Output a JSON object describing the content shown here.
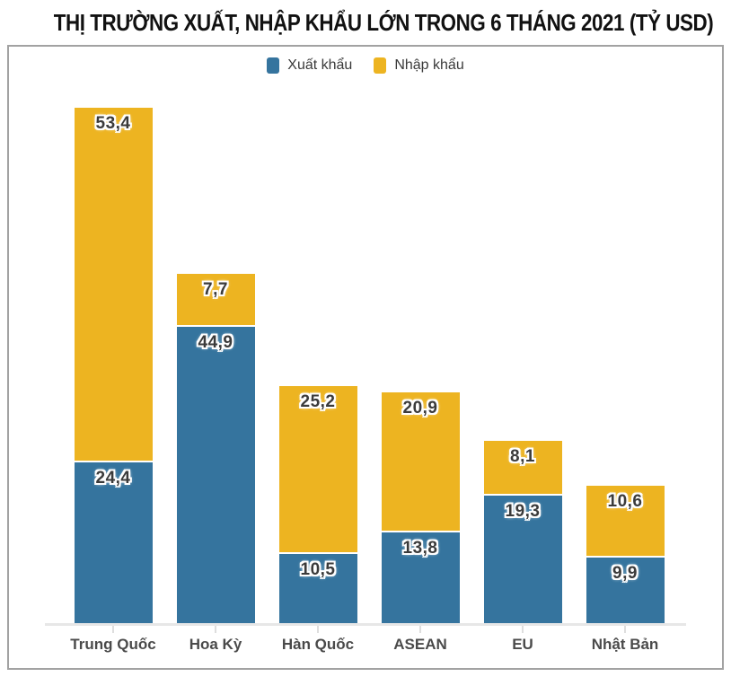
{
  "title": "THỊ TRƯỜNG XUẤT, NHẬP KHẨU LỚN TRONG 6 THÁNG 2021 (TỶ USD)",
  "legend": {
    "items": [
      {
        "label": "Xuất khẩu",
        "color": "#35749E"
      },
      {
        "label": "Nhập khẩu",
        "color": "#EDB421"
      }
    ],
    "position": "top"
  },
  "chart_data": {
    "type": "bar",
    "stacked": true,
    "title": "THỊ TRƯỜNG XUẤT, NHẬP KHẨU LỚN TRONG 6 THÁNG 2021 (TỶ USD)",
    "categories": [
      "Trung Quốc",
      "Hoa Kỳ",
      "Hàn Quốc",
      "ASEAN",
      "EU",
      "Nhật Bản"
    ],
    "series": [
      {
        "name": "Xuất khẩu",
        "key": "xuat-khau",
        "color": "#35749E",
        "values": [
          24.4,
          44.9,
          10.5,
          13.8,
          19.3,
          9.9
        ],
        "labels": [
          "24,4",
          "44,9",
          "10,5",
          "13,8",
          "19,3",
          "9,9"
        ]
      },
      {
        "name": "Nhập khẩu",
        "key": "nhap-khau",
        "color": "#EDB421",
        "values": [
          53.4,
          7.7,
          25.2,
          20.9,
          8.1,
          10.6
        ],
        "labels": [
          "53,4",
          "7,7",
          "25,2",
          "20,9",
          "8,1",
          "10,6"
        ]
      }
    ],
    "unit": "TỶ USD",
    "xlabel": "",
    "ylabel": "",
    "ylim": [
      0,
      87.5
    ],
    "grid": false,
    "legend_position": "top",
    "value_label_decimal": "comma"
  }
}
